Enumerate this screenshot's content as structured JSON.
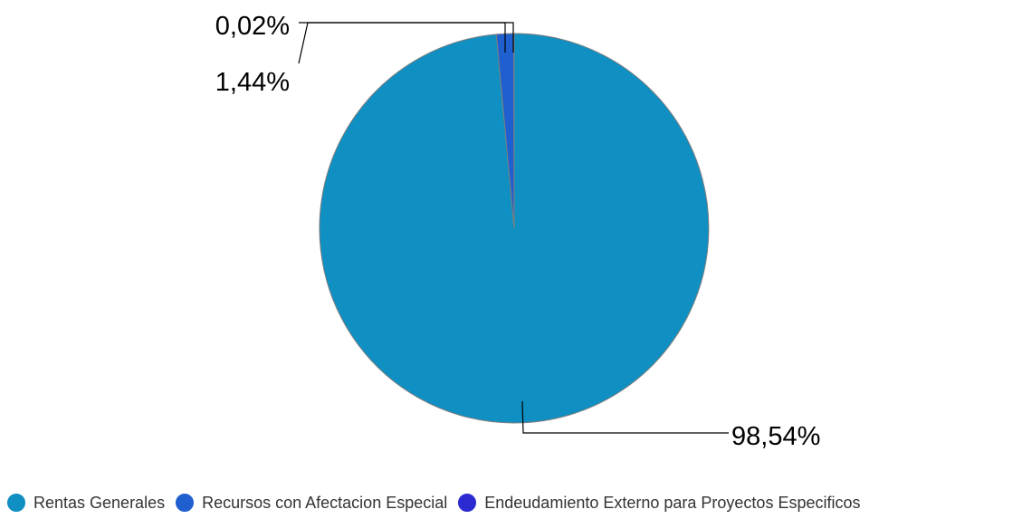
{
  "chart_data": {
    "type": "pie",
    "title": "",
    "slices": [
      {
        "name": "Rentas Generales",
        "value": 98.54,
        "label": "98,54%",
        "color": "#0f8fc2"
      },
      {
        "name": "Recursos con Afectacion Especial",
        "value": 1.44,
        "label": "1,44%",
        "color": "#1f5fcf"
      },
      {
        "name": "Endeudamiento Externo para Proyectos Especificos",
        "value": 0.02,
        "label": "0,02%",
        "color": "#2b2bd1"
      }
    ],
    "legend_position": "bottom"
  }
}
